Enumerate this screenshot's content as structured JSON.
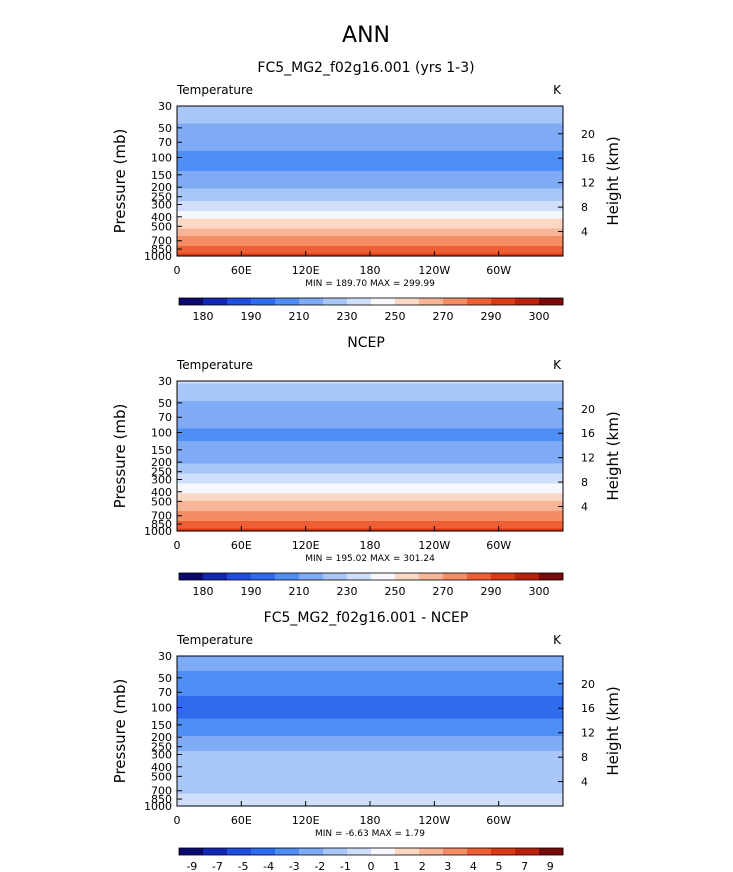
{
  "page_title": "ANN",
  "chart_data": [
    {
      "type": "heatmap",
      "title": "FC5_MG2_f02g16.001 (yrs 1-3)",
      "left_label": "Temperature",
      "unit_label": "K",
      "ylabel": "Pressure  (mb)",
      "ylabel_right": "Height  (km)",
      "x_ticks": [
        "0",
        "60E",
        "120E",
        "180",
        "120W",
        "60W"
      ],
      "x_tick_values": [
        0,
        60,
        120,
        180,
        240,
        300
      ],
      "xlim": [
        0,
        360
      ],
      "y_ticks": [
        "30",
        "50",
        "70",
        "100",
        "150",
        "200",
        "250",
        "300",
        "400",
        "500",
        "700",
        "850",
        "1000"
      ],
      "y_tick_values": [
        30,
        50,
        70,
        100,
        150,
        200,
        250,
        300,
        400,
        500,
        700,
        850,
        1000
      ],
      "ylim": [
        1000,
        30
      ],
      "height_ticks": [
        "20",
        "16",
        "12",
        "8",
        "4"
      ],
      "height_tick_values": [
        20,
        16,
        12,
        8,
        4
      ],
      "stats": "MIN = 189.70   MAX = 299.99",
      "colorbar_labels": [
        "180",
        "190",
        "210",
        "230",
        "250",
        "270",
        "290",
        "300"
      ],
      "field_profile": [
        [
          30,
          230
        ],
        [
          50,
          218
        ],
        [
          70,
          213
        ],
        [
          100,
          207
        ],
        [
          150,
          211
        ],
        [
          200,
          218
        ],
        [
          250,
          226
        ],
        [
          300,
          234
        ],
        [
          400,
          248
        ],
        [
          500,
          258
        ],
        [
          700,
          274
        ],
        [
          850,
          283
        ],
        [
          1000,
          292
        ]
      ]
    },
    {
      "type": "heatmap",
      "title": "NCEP",
      "left_label": "Temperature",
      "unit_label": "K",
      "ylabel": "Pressure  (mb)",
      "ylabel_right": "Height  (km)",
      "x_ticks": [
        "0",
        "60E",
        "120E",
        "180",
        "120W",
        "60W"
      ],
      "x_tick_values": [
        0,
        60,
        120,
        180,
        240,
        300
      ],
      "xlim": [
        0,
        360
      ],
      "y_ticks": [
        "30",
        "50",
        "70",
        "100",
        "150",
        "200",
        "250",
        "300",
        "400",
        "500",
        "700",
        "850",
        "1000"
      ],
      "y_tick_values": [
        30,
        50,
        70,
        100,
        150,
        200,
        250,
        300,
        400,
        500,
        700,
        850,
        1000
      ],
      "ylim": [
        1000,
        30
      ],
      "height_ticks": [
        "20",
        "16",
        "12",
        "8",
        "4"
      ],
      "height_tick_values": [
        20,
        16,
        12,
        8,
        4
      ],
      "stats": "MIN = 195.02   MAX = 301.24",
      "colorbar_labels": [
        "180",
        "190",
        "210",
        "230",
        "250",
        "270",
        "290",
        "300"
      ],
      "field_profile": [
        [
          30,
          232
        ],
        [
          50,
          219
        ],
        [
          70,
          214
        ],
        [
          100,
          208
        ],
        [
          150,
          212
        ],
        [
          200,
          219
        ],
        [
          250,
          227
        ],
        [
          300,
          235
        ],
        [
          400,
          249
        ],
        [
          500,
          259
        ],
        [
          700,
          275
        ],
        [
          850,
          284
        ],
        [
          1000,
          293
        ]
      ]
    },
    {
      "type": "heatmap",
      "title": "FC5_MG2_f02g16.001 - NCEP",
      "left_label": "Temperature",
      "unit_label": "K",
      "ylabel": "Pressure  (mb)",
      "ylabel_right": "Height  (km)",
      "x_ticks": [
        "0",
        "60E",
        "120E",
        "180",
        "120W",
        "60W"
      ],
      "x_tick_values": [
        0,
        60,
        120,
        180,
        240,
        300
      ],
      "xlim": [
        0,
        360
      ],
      "y_ticks": [
        "30",
        "50",
        "70",
        "100",
        "150",
        "200",
        "250",
        "300",
        "400",
        "500",
        "700",
        "850",
        "1000"
      ],
      "y_tick_values": [
        30,
        50,
        70,
        100,
        150,
        200,
        250,
        300,
        400,
        500,
        700,
        850,
        1000
      ],
      "ylim": [
        1000,
        30
      ],
      "height_ticks": [
        "20",
        "16",
        "12",
        "8",
        "4"
      ],
      "height_tick_values": [
        20,
        16,
        12,
        8,
        4
      ],
      "stats": "MIN =  -6.63   MAX =   1.79",
      "colorbar_labels": [
        "-9",
        "-7",
        "-5",
        "-4",
        "-3",
        "-2",
        "-1",
        "0",
        "1",
        "2",
        "3",
        "4",
        "5",
        "7",
        "9"
      ],
      "field_profile": [
        [
          30,
          -2.5
        ],
        [
          50,
          -3.2
        ],
        [
          70,
          -3.8
        ],
        [
          100,
          -4.6
        ],
        [
          150,
          -3.6
        ],
        [
          200,
          -3.0
        ],
        [
          250,
          -2.3
        ],
        [
          300,
          -1.7
        ],
        [
          400,
          -1.3
        ],
        [
          500,
          -1.4
        ],
        [
          700,
          -1.2
        ],
        [
          850,
          -0.6
        ],
        [
          1000,
          -0.3
        ]
      ]
    }
  ],
  "colorbar_colors": {
    "absolute": [
      "#0a0a6e",
      "#1228b4",
      "#1f4ee0",
      "#2f6bef",
      "#4f8ff5",
      "#7eaaf6",
      "#a8c6f8",
      "#cfdefa",
      "#f6f8fe",
      "#fbd8c4",
      "#f7b497",
      "#f48c64",
      "#ef5f35",
      "#dc3a14",
      "#b9210a",
      "#7a0a0a"
    ],
    "difference": [
      "#0a0a6e",
      "#1228b4",
      "#1f4ee0",
      "#2f6bef",
      "#4f8ff5",
      "#7eaaf6",
      "#a8c6f8",
      "#cfdefa",
      "#f6f8fe",
      "#fbd8c4",
      "#f7b497",
      "#f48c64",
      "#ef5f35",
      "#dc3a14",
      "#b9210a",
      "#7a0a0a"
    ]
  }
}
